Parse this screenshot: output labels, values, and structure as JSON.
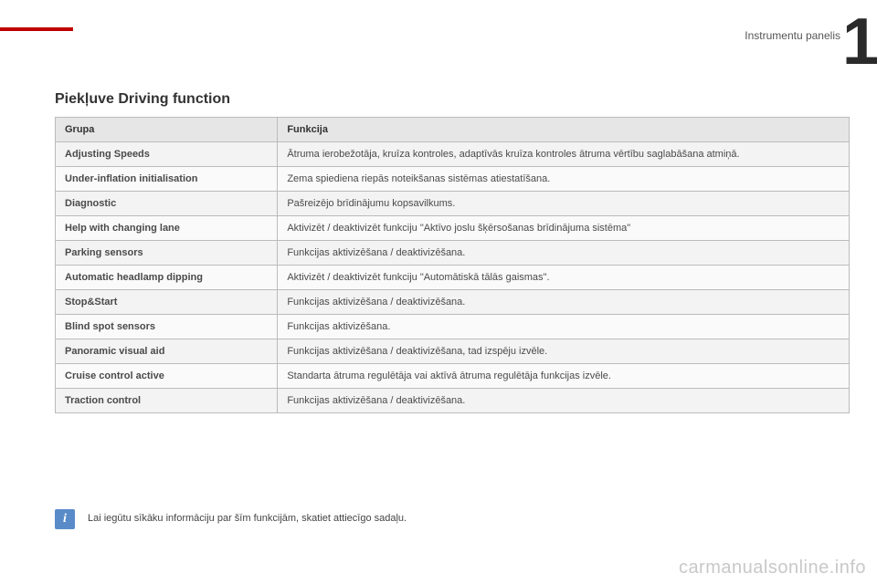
{
  "header": {
    "section": "Instrumentu panelis",
    "chapter_number": "1",
    "accent_bar_color": "#c00000"
  },
  "title": "Piekļuve Driving function",
  "table": {
    "type": "table",
    "columns": [
      "Grupa",
      "Funkcija"
    ],
    "col_widths_pct": [
      28,
      72
    ],
    "header_bg": "#e6e6e6",
    "row_bg_odd": "#f3f3f3",
    "row_bg_even": "#fafafa",
    "border_color": "#bbbbbb",
    "font_size_pt": 8,
    "rows": [
      [
        "Adjusting Speeds",
        "Ātruma ierobežotāja, kruīza kontroles, adaptīvās kruīza kontroles ātruma vērtību saglabāšana atmiņā."
      ],
      [
        "Under-inflation initialisation",
        "Zema spiediena riepās noteikšanas sistēmas atiestatīšana."
      ],
      [
        "Diagnostic",
        "Pašreizējo brīdinājumu kopsavilkums."
      ],
      [
        "Help with changing lane",
        "Aktivizēt / deaktivizēt funkciju \"Aktīvo joslu šķērsošanas brīdinājuma sistēma\""
      ],
      [
        "Parking sensors",
        "Funkcijas aktivizēšana / deaktivizēšana."
      ],
      [
        "Automatic headlamp dipping",
        "Aktivizēt / deaktivizēt funkciju \"Automātiskā tālās gaismas\"."
      ],
      [
        "Stop&Start",
        "Funkcijas aktivizēšana / deaktivizēšana."
      ],
      [
        "Blind spot sensors",
        "Funkcijas aktivizēšana."
      ],
      [
        "Panoramic visual aid",
        "Funkcijas aktivizēšana / deaktivizēšana, tad izspēju izvēle."
      ],
      [
        "Cruise control active",
        "Standarta ātruma regulētāja vai aktīvā ātruma regulētāja funkcijas izvēle."
      ],
      [
        "Traction control",
        "Funkcijas aktivizēšana / deaktivizēšana."
      ]
    ]
  },
  "note": {
    "icon_bg": "#5a8bc9",
    "text": "Lai iegūtu sīkāku informāciju par šīm funkcijām, skatiet attiecīgo sadaļu."
  },
  "footer": {
    "watermark": "carmanualsonline.info",
    "page_number": ""
  }
}
